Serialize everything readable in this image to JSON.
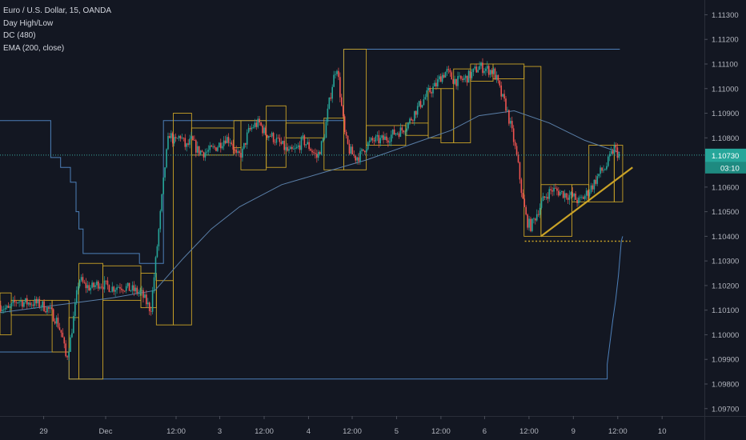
{
  "legend": {
    "symbol": "Euro / U.S. Dollar, 15, OANDA",
    "study1": "Day High/Low",
    "study2": "DC (480)",
    "study3": "EMA (200, close)"
  },
  "price_tag": {
    "price": "1.10730",
    "countdown": "03:10"
  },
  "colors": {
    "background": "#131722",
    "up": "#26a69a",
    "down": "#ef5350",
    "day_box": "#c9a227",
    "donchian": "#4d7fb8",
    "ema": "#5a7fa8",
    "trendline": "#c9a227",
    "axis_text": "#b2b5be"
  },
  "chart_data": {
    "type": "candlestick",
    "y_range": [
      1.0967,
      1.1136
    ],
    "x_range": [
      0,
      1000
    ],
    "y_ticks": [
      "1.11300",
      "1.11200",
      "1.11100",
      "1.11000",
      "1.10900",
      "1.10800",
      "1.10600",
      "1.10500",
      "1.10400",
      "1.10300",
      "1.10200",
      "1.10100",
      "1.10000",
      "1.09900",
      "1.09800",
      "1.09700"
    ],
    "x_ticks": [
      {
        "t": 62,
        "label": "29"
      },
      {
        "t": 150,
        "label": "Dec"
      },
      {
        "t": 250,
        "label": "12:00"
      },
      {
        "t": 312,
        "label": "3"
      },
      {
        "t": 375,
        "label": "12:00"
      },
      {
        "t": 438,
        "label": "4"
      },
      {
        "t": 500,
        "label": "12:00"
      },
      {
        "t": 563,
        "label": "5"
      },
      {
        "t": 626,
        "label": "12:00"
      },
      {
        "t": 688,
        "label": "6"
      },
      {
        "t": 751,
        "label": "12:00"
      },
      {
        "t": 814,
        "label": "9"
      },
      {
        "t": 877,
        "label": "12:00"
      },
      {
        "t": 940,
        "label": "10"
      }
    ],
    "price_path": [
      [
        0,
        1.1012
      ],
      [
        12,
        1.101
      ],
      [
        24,
        1.1014
      ],
      [
        36,
        1.1013
      ],
      [
        48,
        1.1013
      ],
      [
        60,
        1.1012
      ],
      [
        70,
        1.101
      ],
      [
        80,
        1.1006
      ],
      [
        88,
        1.1
      ],
      [
        94,
        1.099
      ],
      [
        100,
        1.0998
      ],
      [
        106,
        1.101
      ],
      [
        112,
        1.1023
      ],
      [
        120,
        1.102
      ],
      [
        130,
        1.1019
      ],
      [
        140,
        1.1021
      ],
      [
        150,
        1.102
      ],
      [
        160,
        1.1019
      ],
      [
        170,
        1.102
      ],
      [
        180,
        1.1019
      ],
      [
        190,
        1.1018
      ],
      [
        200,
        1.1017
      ],
      [
        208,
        1.1013
      ],
      [
        214,
        1.101
      ],
      [
        220,
        1.1027
      ],
      [
        228,
        1.105
      ],
      [
        234,
        1.1068
      ],
      [
        240,
        1.1082
      ],
      [
        248,
        1.1078
      ],
      [
        256,
        1.1081
      ],
      [
        264,
        1.1076
      ],
      [
        272,
        1.1079
      ],
      [
        280,
        1.1075
      ],
      [
        290,
        1.1074
      ],
      [
        300,
        1.1075
      ],
      [
        310,
        1.1077
      ],
      [
        320,
        1.108
      ],
      [
        328,
        1.1079
      ],
      [
        336,
        1.1072
      ],
      [
        344,
        1.1074
      ],
      [
        352,
        1.1082
      ],
      [
        360,
        1.1085
      ],
      [
        368,
        1.1086
      ],
      [
        376,
        1.1082
      ],
      [
        384,
        1.1081
      ],
      [
        392,
        1.1079
      ],
      [
        400,
        1.1077
      ],
      [
        410,
        1.1074
      ],
      [
        420,
        1.1075
      ],
      [
        430,
        1.1079
      ],
      [
        440,
        1.1076
      ],
      [
        450,
        1.1072
      ],
      [
        460,
        1.108
      ],
      [
        466,
        1.1092
      ],
      [
        472,
        1.1102
      ],
      [
        478,
        1.111
      ],
      [
        484,
        1.1095
      ],
      [
        490,
        1.108
      ],
      [
        496,
        1.1075
      ],
      [
        504,
        1.1072
      ],
      [
        512,
        1.1073
      ],
      [
        520,
        1.1077
      ],
      [
        530,
        1.1079
      ],
      [
        540,
        1.1079
      ],
      [
        550,
        1.108
      ],
      [
        560,
        1.1082
      ],
      [
        570,
        1.1083
      ],
      [
        580,
        1.1086
      ],
      [
        590,
        1.1091
      ],
      [
        600,
        1.1095
      ],
      [
        610,
        1.1099
      ],
      [
        618,
        1.1101
      ],
      [
        626,
        1.1105
      ],
      [
        634,
        1.1107
      ],
      [
        642,
        1.1104
      ],
      [
        650,
        1.1103
      ],
      [
        660,
        1.1104
      ],
      [
        670,
        1.1106
      ],
      [
        680,
        1.1109
      ],
      [
        690,
        1.1108
      ],
      [
        700,
        1.1107
      ],
      [
        706,
        1.1103
      ],
      [
        712,
        1.1097
      ],
      [
        718,
        1.1093
      ],
      [
        724,
        1.1086
      ],
      [
        730,
        1.1078
      ],
      [
        736,
        1.1068
      ],
      [
        742,
        1.1055
      ],
      [
        748,
        1.1046
      ],
      [
        754,
        1.1044
      ],
      [
        760,
        1.1048
      ],
      [
        768,
        1.1053
      ],
      [
        776,
        1.1057
      ],
      [
        784,
        1.1059
      ],
      [
        794,
        1.1058
      ],
      [
        804,
        1.1057
      ],
      [
        814,
        1.1056
      ],
      [
        822,
        1.1054
      ],
      [
        832,
        1.1057
      ],
      [
        842,
        1.1061
      ],
      [
        852,
        1.1066
      ],
      [
        860,
        1.1068
      ],
      [
        866,
        1.1072
      ],
      [
        872,
        1.1076
      ],
      [
        876,
        1.1074
      ],
      [
        880,
        1.1073
      ]
    ],
    "ema_path": [
      [
        0,
        1.1009
      ],
      [
        80,
        1.1012
      ],
      [
        160,
        1.1015
      ],
      [
        220,
        1.1018
      ],
      [
        260,
        1.1031
      ],
      [
        300,
        1.1043
      ],
      [
        340,
        1.1052
      ],
      [
        400,
        1.1061
      ],
      [
        460,
        1.1066
      ],
      [
        520,
        1.1071
      ],
      [
        580,
        1.1077
      ],
      [
        640,
        1.1083
      ],
      [
        680,
        1.1089
      ],
      [
        730,
        1.1091
      ],
      [
        780,
        1.1086
      ],
      [
        830,
        1.1079
      ],
      [
        880,
        1.1074
      ]
    ],
    "donchian_upper": [
      [
        0,
        1.1087
      ],
      [
        72,
        1.1087
      ],
      [
        72,
        1.1072
      ],
      [
        86,
        1.1072
      ],
      [
        86,
        1.1068
      ],
      [
        100,
        1.1068
      ],
      [
        100,
        1.1062
      ],
      [
        108,
        1.1062
      ],
      [
        108,
        1.105
      ],
      [
        112,
        1.105
      ],
      [
        112,
        1.1043
      ],
      [
        118,
        1.1043
      ],
      [
        118,
        1.1033
      ],
      [
        198,
        1.1033
      ],
      [
        198,
        1.1029
      ],
      [
        232,
        1.1029
      ],
      [
        232,
        1.1087
      ],
      [
        488,
        1.1087
      ],
      [
        488,
        1.1116
      ],
      [
        880,
        1.1116
      ]
    ],
    "donchian_lower": [
      [
        0,
        1.0993
      ],
      [
        98,
        1.0993
      ],
      [
        98,
        1.0982
      ],
      [
        862,
        1.0982
      ],
      [
        862,
        1.0988
      ],
      [
        866,
        1.0997
      ],
      [
        870,
        1.1006
      ],
      [
        874,
        1.1014
      ],
      [
        878,
        1.1024
      ],
      [
        882,
        1.1038
      ],
      [
        884,
        1.104
      ]
    ],
    "day_boxes": [
      {
        "t0": 0,
        "t1": 16,
        "high": 1.1017,
        "low": 1.1
      },
      {
        "t0": 16,
        "t1": 74,
        "high": 1.1014,
        "low": 1.1008
      },
      {
        "t0": 74,
        "t1": 98,
        "high": 1.1014,
        "low": 1.0993
      },
      {
        "t0": 98,
        "t1": 112,
        "high": 1.1007,
        "low": 1.0982
      },
      {
        "t0": 112,
        "t1": 146,
        "high": 1.1029,
        "low": 1.0982
      },
      {
        "t0": 146,
        "t1": 200,
        "high": 1.1028,
        "low": 1.1014
      },
      {
        "t0": 200,
        "t1": 222,
        "high": 1.1025,
        "low": 1.1011
      },
      {
        "t0": 222,
        "t1": 246,
        "high": 1.1022,
        "low": 1.1004
      },
      {
        "t0": 246,
        "t1": 272,
        "high": 1.109,
        "low": 1.1004
      },
      {
        "t0": 272,
        "t1": 332,
        "high": 1.1084,
        "low": 1.1073
      },
      {
        "t0": 332,
        "t1": 342,
        "high": 1.1087,
        "low": 1.1076
      },
      {
        "t0": 342,
        "t1": 378,
        "high": 1.1087,
        "low": 1.1067
      },
      {
        "t0": 378,
        "t1": 406,
        "high": 1.1093,
        "low": 1.1068
      },
      {
        "t0": 406,
        "t1": 460,
        "high": 1.1086,
        "low": 1.108
      },
      {
        "t0": 460,
        "t1": 488,
        "high": 1.1088,
        "low": 1.1067
      },
      {
        "t0": 488,
        "t1": 520,
        "high": 1.1116,
        "low": 1.1067
      },
      {
        "t0": 520,
        "t1": 576,
        "high": 1.1085,
        "low": 1.1077
      },
      {
        "t0": 576,
        "t1": 608,
        "high": 1.1086,
        "low": 1.1081
      },
      {
        "t0": 608,
        "t1": 626,
        "high": 1.11,
        "low": 1.108
      },
      {
        "t0": 626,
        "t1": 644,
        "high": 1.11,
        "low": 1.1078
      },
      {
        "t0": 644,
        "t1": 668,
        "high": 1.1108,
        "low": 1.1078
      },
      {
        "t0": 668,
        "t1": 700,
        "high": 1.111,
        "low": 1.1103
      },
      {
        "t0": 700,
        "t1": 744,
        "high": 1.111,
        "low": 1.1104
      },
      {
        "t0": 744,
        "t1": 768,
        "high": 1.1109,
        "low": 1.104
      },
      {
        "t0": 768,
        "t1": 812,
        "high": 1.1061,
        "low": 1.104
      },
      {
        "t0": 812,
        "t1": 836,
        "high": 1.1061,
        "low": 1.1054
      },
      {
        "t0": 836,
        "t1": 872,
        "high": 1.1077,
        "low": 1.1054
      },
      {
        "t0": 872,
        "t1": 884,
        "high": 1.1077,
        "low": 1.1054
      }
    ],
    "trendline": {
      "t0": 768,
      "p0": 1.104,
      "t1": 898,
      "p1": 1.1068
    },
    "support_line": {
      "t0": 745,
      "t1": 895,
      "price": 1.1038
    },
    "last_price_line": 1.1073
  }
}
